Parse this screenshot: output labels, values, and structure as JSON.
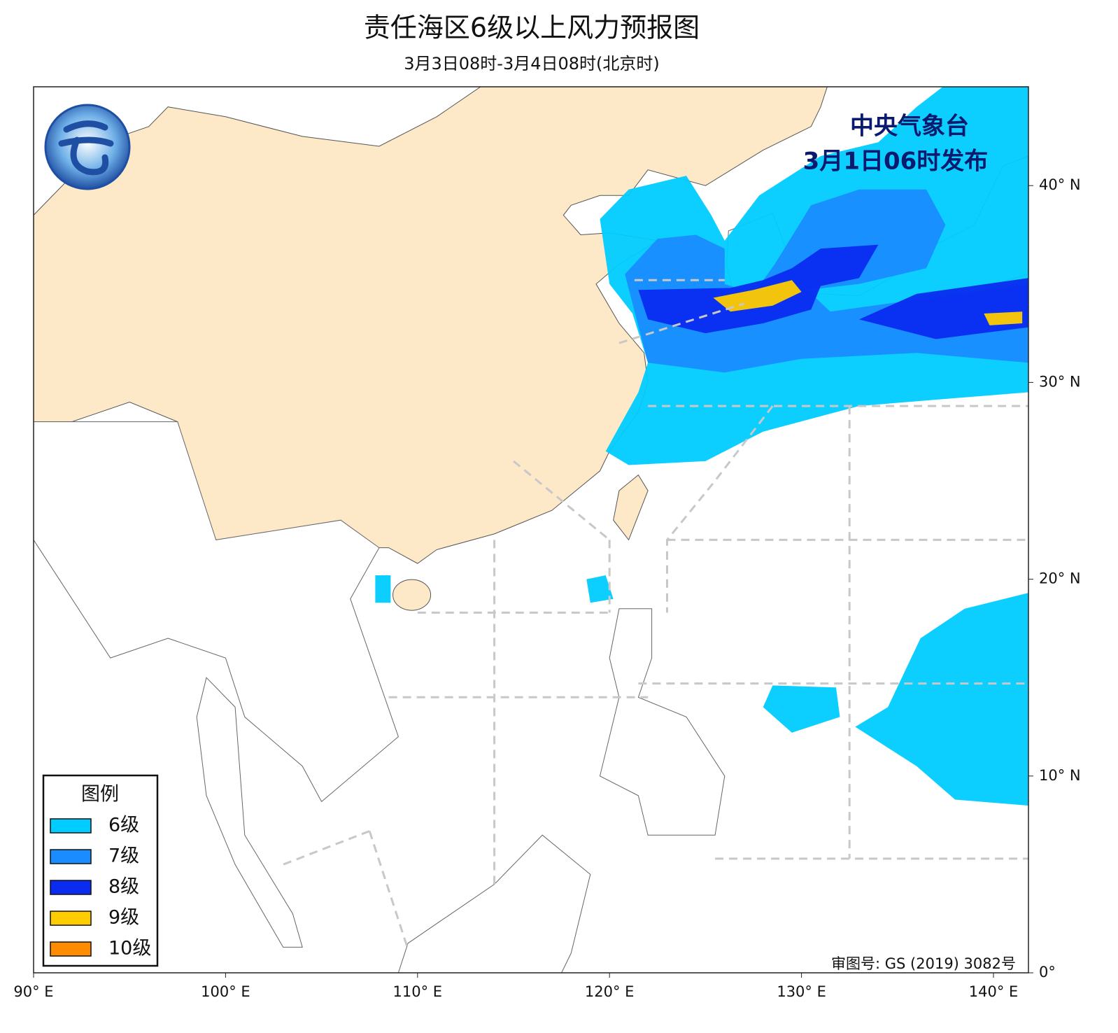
{
  "header": {
    "title": "责任海区6级以上风力预报图",
    "subtitle": "3月3日08时-3月4日08时(北京时)"
  },
  "issuer": {
    "agency": "中央气象台",
    "time": "3月1日06时发布"
  },
  "map": {
    "lon_ticks": [
      {
        "value": 90,
        "label": "90° E"
      },
      {
        "value": 100,
        "label": "100° E"
      },
      {
        "value": 110,
        "label": "110° E"
      },
      {
        "value": 120,
        "label": "120° E"
      },
      {
        "value": 130,
        "label": "130° E"
      },
      {
        "value": 140,
        "label": "140° E"
      }
    ],
    "lat_ticks": [
      {
        "value": 0,
        "label": "0°"
      },
      {
        "value": 10,
        "label": "10° N"
      },
      {
        "value": 20,
        "label": "20° N"
      },
      {
        "value": 30,
        "label": "30° N"
      },
      {
        "value": 40,
        "label": "40° N"
      }
    ]
  },
  "legend": {
    "title": "图例",
    "items": [
      {
        "label": "6级",
        "color": "#00ccff"
      },
      {
        "label": "7级",
        "color": "#1a8cff"
      },
      {
        "label": "8级",
        "color": "#0a2cf0"
      },
      {
        "label": "9级",
        "color": "#ffcc00"
      },
      {
        "label": "10级",
        "color": "#ff8c00"
      }
    ]
  },
  "footer": {
    "review_number": "审图号: GS (2019) 3082号"
  }
}
